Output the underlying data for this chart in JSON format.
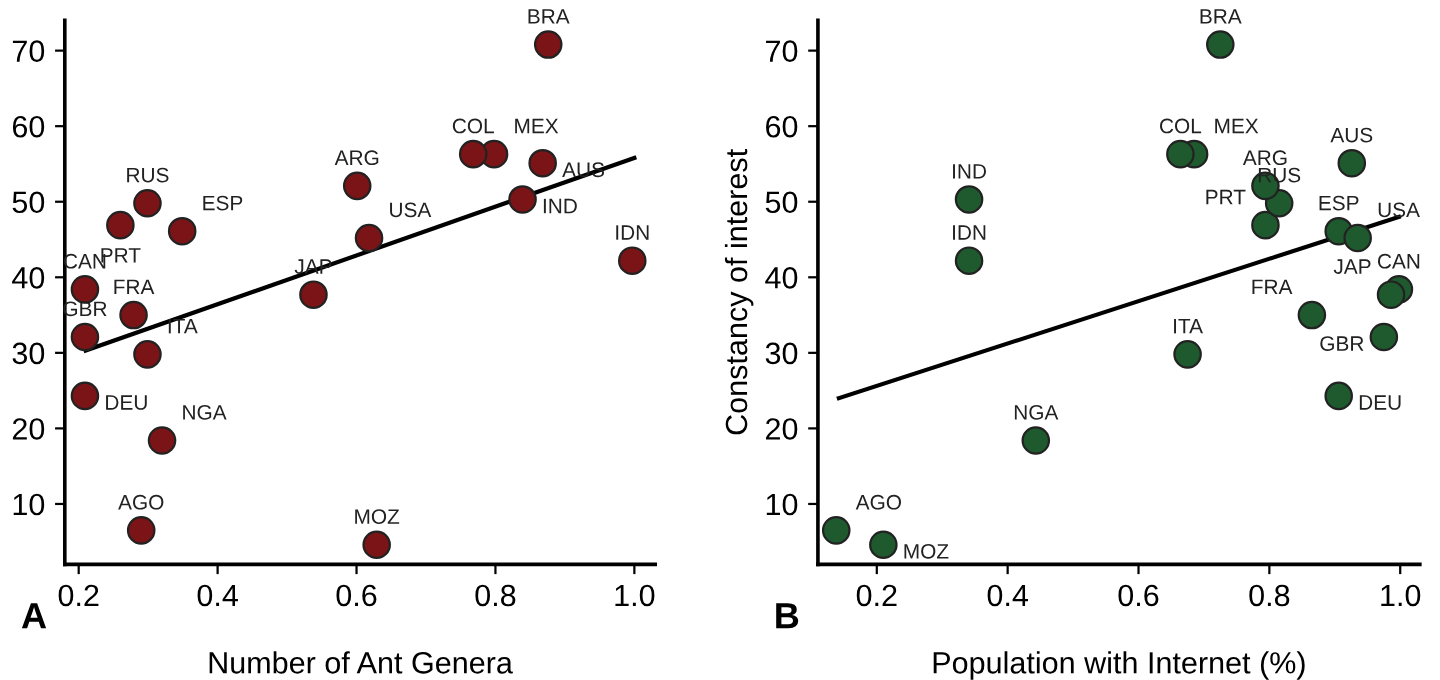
{
  "chart_data": [
    {
      "type": "scatter",
      "xlabel": "Number of Ant Genera",
      "annotations": [
        "A",
        {
          "text": "BRA",
          "x": 0.876,
          "y": 70.8
        },
        {
          "text": "COL",
          "x": 0.768,
          "y": 56.3
        },
        {
          "text": "MEX",
          "x": 0.798,
          "y": 56.3
        },
        {
          "text": "AUS",
          "x": 0.868,
          "y": 55.1
        },
        {
          "text": "IND",
          "x": 0.839,
          "y": 50.3
        },
        {
          "text": "ARG",
          "x": 0.601,
          "y": 52.1
        },
        {
          "text": "USA",
          "x": 0.618,
          "y": 45.2
        },
        {
          "text": "JAP",
          "x": 0.538,
          "y": 37.7
        },
        {
          "text": "IDN",
          "x": 0.997,
          "y": 42.2
        },
        {
          "text": "RUS",
          "x": 0.299,
          "y": 49.8
        },
        {
          "text": "PRT",
          "x": 0.26,
          "y": 46.9
        },
        {
          "text": "ESP",
          "x": 0.349,
          "y": 46.1
        },
        {
          "text": "CAN",
          "x": 0.209,
          "y": 38.4
        },
        {
          "text": "FRA",
          "x": 0.279,
          "y": 35.0
        },
        {
          "text": "GBR",
          "x": 0.209,
          "y": 32.1
        },
        {
          "text": "ITA",
          "x": 0.299,
          "y": 29.8
        },
        {
          "text": "DEU",
          "x": 0.209,
          "y": 24.3
        },
        {
          "text": "NGA",
          "x": 0.32,
          "y": 18.4
        },
        {
          "text": "AGO",
          "x": 0.29,
          "y": 6.5
        },
        {
          "text": "MOZ",
          "x": 0.629,
          "y": 4.6
        }
      ],
      "series": [
        {
          "marker": "circle",
          "color": "#7b1416",
          "x": [
            0.876,
            0.768,
            0.798,
            0.868,
            0.839,
            0.601,
            0.618,
            0.538,
            0.997,
            0.299,
            0.26,
            0.349,
            0.209,
            0.279,
            0.209,
            0.299,
            0.209,
            0.32,
            0.29,
            0.629
          ],
          "values": [
            70.8,
            56.3,
            56.3,
            55.1,
            50.3,
            52.1,
            45.2,
            37.7,
            42.2,
            49.8,
            46.9,
            46.1,
            38.4,
            35.0,
            32.1,
            29.8,
            24.3,
            18.4,
            6.5,
            4.6
          ]
        },
        {
          "type": "line",
          "marker": "none",
          "color": "#000000",
          "x": [
            0.21,
            1.0
          ],
          "values": [
            30.3,
            55.8
          ]
        }
      ],
      "xlim": [
        0.18,
        1.03
      ],
      "ylim": [
        2,
        74
      ],
      "xticks": [
        0.2,
        0.4,
        0.6,
        0.8,
        {
          "value": 1.0,
          "label": "1.0"
        }
      ],
      "yticks": [
        10,
        20,
        30,
        40,
        50,
        60,
        70
      ],
      "grid": false
    },
    {
      "type": "scatter",
      "xlabel": "Population with Internet (%)",
      "ylabel": "Constancy of interest",
      "annotations": [
        "B",
        {
          "text": "BRA",
          "x": 0.725,
          "y": 70.8
        },
        {
          "text": "COL",
          "x": 0.664,
          "y": 56.3
        },
        {
          "text": "MEX",
          "x": 0.685,
          "y": 56.3
        },
        {
          "text": "AUS",
          "x": 0.926,
          "y": 55.1
        },
        {
          "text": "IND",
          "x": 0.341,
          "y": 50.3
        },
        {
          "text": "ARG",
          "x": 0.794,
          "y": 52.1
        },
        {
          "text": "USA",
          "x": 0.935,
          "y": 45.2
        },
        {
          "text": "JAP",
          "x": 0.986,
          "y": 37.7
        },
        {
          "text": "IDN",
          "x": 0.341,
          "y": 42.2
        },
        {
          "text": "RUS",
          "x": 0.815,
          "y": 49.8
        },
        {
          "text": "PRT",
          "x": 0.794,
          "y": 46.9
        },
        {
          "text": "ESP",
          "x": 0.906,
          "y": 46.1
        },
        {
          "text": "CAN",
          "x": 0.998,
          "y": 38.4
        },
        {
          "text": "FRA",
          "x": 0.865,
          "y": 35.0
        },
        {
          "text": "GBR",
          "x": 0.975,
          "y": 32.1
        },
        {
          "text": "ITA",
          "x": 0.675,
          "y": 29.8
        },
        {
          "text": "DEU",
          "x": 0.906,
          "y": 24.3
        },
        {
          "text": "NGA",
          "x": 0.443,
          "y": 18.4
        },
        {
          "text": "AGO",
          "x": 0.138,
          "y": 6.5
        },
        {
          "text": "MOZ",
          "x": 0.21,
          "y": 4.6
        }
      ],
      "series": [
        {
          "marker": "circle",
          "color": "#1e5a2e",
          "x": [
            0.725,
            0.664,
            0.685,
            0.926,
            0.341,
            0.794,
            0.935,
            0.986,
            0.341,
            0.815,
            0.794,
            0.906,
            0.998,
            0.865,
            0.975,
            0.675,
            0.906,
            0.443,
            0.138,
            0.21
          ],
          "values": [
            70.8,
            56.3,
            56.3,
            55.1,
            50.3,
            52.1,
            45.2,
            37.7,
            42.2,
            49.8,
            46.9,
            46.1,
            38.4,
            35.0,
            32.1,
            29.8,
            24.3,
            18.4,
            6.5,
            4.6
          ]
        },
        {
          "type": "line",
          "marker": "none",
          "color": "#000000",
          "x": [
            0.142,
            0.998
          ],
          "values": [
            24.0,
            48.0
          ]
        }
      ],
      "xlim": [
        0.11,
        1.03
      ],
      "ylim": [
        2,
        74
      ],
      "xticks": [
        0.2,
        0.4,
        0.6,
        0.8,
        {
          "value": 1.0,
          "label": "1.0"
        }
      ],
      "yticks": [
        10,
        20,
        30,
        40,
        50,
        60,
        70
      ],
      "grid": false
    }
  ]
}
